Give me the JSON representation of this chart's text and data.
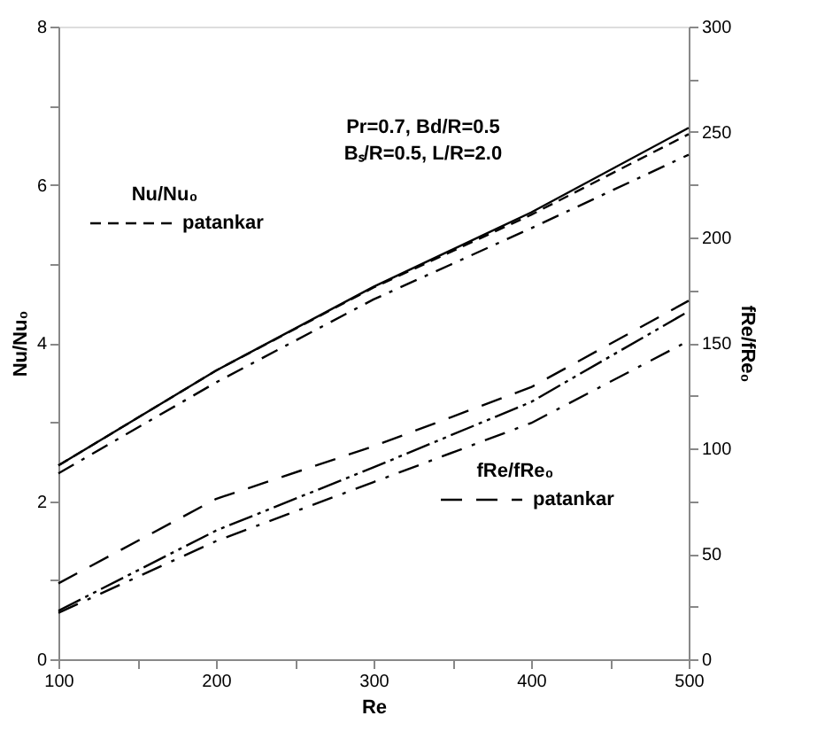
{
  "chart_data": {
    "type": "line",
    "xlabel": "Re",
    "ylabel": "Nu/Nu₀",
    "y2label": "fRe/fRe₀",
    "legend_title": [
      "Nu/Nu₀",
      "fRe/fRe₀"
    ],
    "legend": [
      "top left",
      "bottom right"
    ],
    "annotations": [
      "Pr=0.7, Bd/R=0.5",
      "Bₛ/R=0.5, L/R=2.0"
    ],
    "x": [
      100,
      200,
      300,
      400,
      500
    ],
    "series": [
      {
        "name": "patankar",
        "color": "#000000",
        "line_style": "dashed",
        "values": [
          2.45,
          3.65,
          4.7,
          5.62,
          6.64
        ]
      },
      {
        "color": "#000000",
        "line_style": "solid",
        "values": [
          2.45,
          3.65,
          4.71,
          5.65,
          6.72
        ]
      },
      {
        "color": "#000000",
        "line_style": "dashdot",
        "values": [
          2.35,
          3.5,
          4.55,
          5.45,
          6.38
        ]
      },
      {
        "name": "patankar",
        "color": "#000000",
        "line_style": "longdash",
        "axis": "y2",
        "values": [
          36,
          76,
          101,
          129,
          170
        ]
      },
      {
        "color": "#000000",
        "line_style": "dashdotdot",
        "axis": "y2",
        "values": [
          23,
          61,
          91,
          122,
          165
        ]
      },
      {
        "color": "#000000",
        "line_style": "longdashdot",
        "axis": "y2",
        "values": [
          22,
          56,
          84,
          112,
          151
        ]
      }
    ],
    "xlim": [
      100,
      500
    ],
    "xticks": [
      100,
      {
        "value": 150,
        "label": null
      },
      200,
      {
        "value": 250,
        "label": null
      },
      300,
      {
        "value": 350,
        "label": null
      },
      400,
      {
        "value": 450,
        "label": null
      },
      500
    ],
    "ylim": [
      0,
      8
    ],
    "yticks": [
      0,
      {
        "value": 1,
        "label": null
      },
      2,
      {
        "value": 3,
        "label": null
      },
      4,
      {
        "value": 5,
        "label": null
      },
      6,
      {
        "value": 7,
        "label": null
      },
      8
    ],
    "y2lim": [
      0,
      300
    ],
    "y2ticks": [
      0,
      {
        "value": 25,
        "label": null
      },
      50,
      {
        "value": 75,
        "label": null
      },
      100,
      {
        "value": 125,
        "label": null
      },
      150,
      {
        "value": 175,
        "label": null
      },
      200,
      {
        "value": 225,
        "label": null
      },
      250,
      {
        "value": 275,
        "label": null
      },
      300
    ],
    "grid": false
  }
}
